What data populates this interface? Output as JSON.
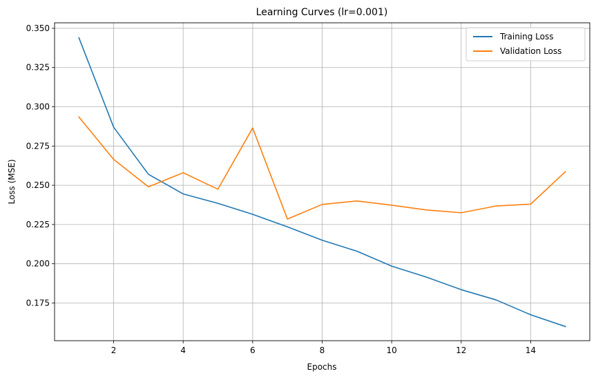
{
  "chart_data": {
    "type": "line",
    "title": "Learning Curves (lr=0.001)",
    "xlabel": "Epochs",
    "ylabel": "Loss (MSE)",
    "xlim": [
      0.3,
      15.7
    ],
    "ylim": [
      0.151,
      0.3535
    ],
    "xticks": [
      2,
      4,
      6,
      8,
      10,
      12,
      14
    ],
    "xtick_labels": [
      "2",
      "4",
      "6",
      "8",
      "10",
      "12",
      "14"
    ],
    "yticks": [
      0.175,
      0.2,
      0.225,
      0.25,
      0.275,
      0.3,
      0.325,
      0.35
    ],
    "ytick_labels": [
      "0.175",
      "0.200",
      "0.225",
      "0.250",
      "0.275",
      "0.300",
      "0.325",
      "0.350"
    ],
    "grid": true,
    "legend_position": "top-right",
    "x": [
      1,
      2,
      3,
      4,
      5,
      6,
      7,
      8,
      9,
      10,
      11,
      12,
      13,
      14,
      15
    ],
    "series": [
      {
        "name": "Training Loss",
        "color": "#1f77b4",
        "values": [
          0.344,
          0.287,
          0.257,
          0.2445,
          0.2385,
          0.2315,
          0.2235,
          0.215,
          0.208,
          0.1985,
          0.1915,
          0.1835,
          0.177,
          0.1675,
          0.16
        ]
      },
      {
        "name": "Validation Loss",
        "color": "#ff7f0e",
        "values": [
          0.2935,
          0.2665,
          0.249,
          0.258,
          0.2475,
          0.2865,
          0.2285,
          0.2378,
          0.24,
          0.2373,
          0.2343,
          0.2325,
          0.2368,
          0.238,
          0.2587
        ]
      }
    ]
  }
}
